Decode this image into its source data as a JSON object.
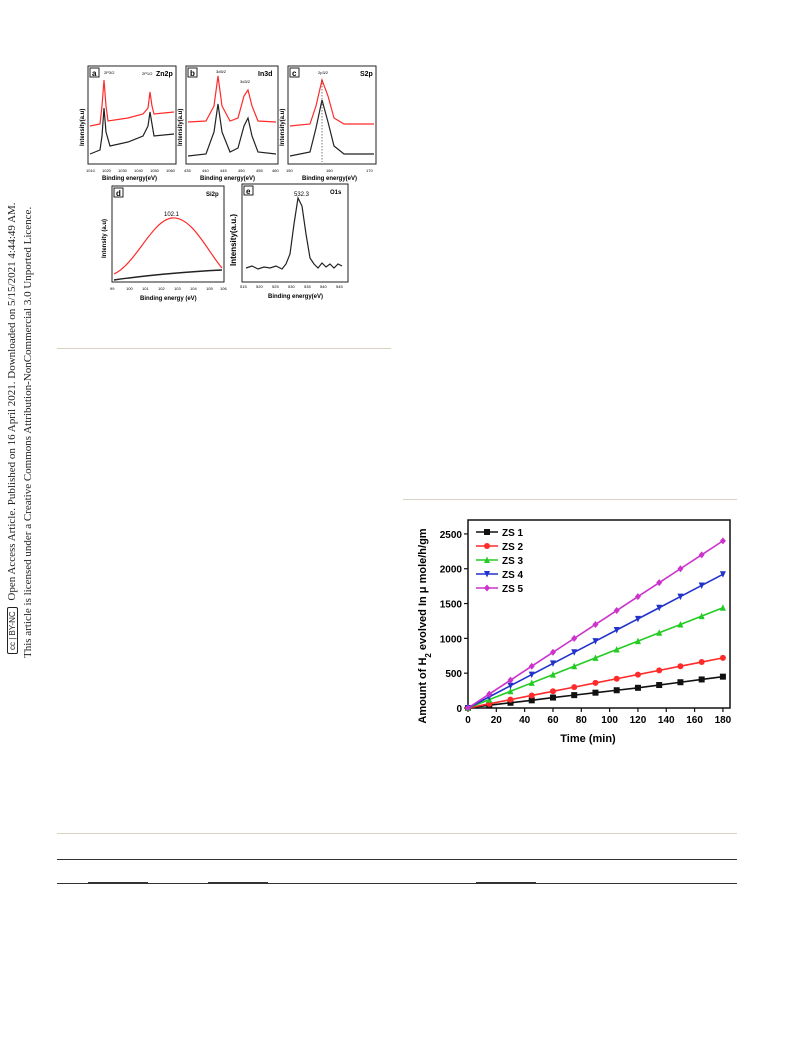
{
  "sidebar": {
    "line1": "Open Access Article. Published on 16 April 2021. Downloaded on 5/15/2021 4:44:49 AM.",
    "line2": "This article is licensed under a Creative Commons Attribution-NonCommercial 3.0 Unported Licence.",
    "badge_cc": "cc",
    "badge_text": "BY-NC"
  },
  "xps_figure": {
    "panels": [
      {
        "letter": "a",
        "element": "Zn2p",
        "peak_labels": [
          "2P3/2",
          "2P1/2"
        ],
        "xlabel": "Binding energy(eV)",
        "ylabel": "Intensity(a.u)",
        "xticks": [
          "1010",
          "1020",
          "1030",
          "1040",
          "1050",
          "1060"
        ]
      },
      {
        "letter": "b",
        "element": "In3d",
        "peak_labels": [
          "3d5/2",
          "3d3/2"
        ],
        "xlabel": "Binding energy(eV)",
        "ylabel": "Intensity(a.u)",
        "xticks": [
          "435",
          "440",
          "445",
          "450",
          "455",
          "460"
        ]
      },
      {
        "letter": "c",
        "element": "S2p",
        "peak_labels": [
          "2p3/2"
        ],
        "xlabel": "Binding energy(eV)",
        "ylabel": "Intensity(a.u)",
        "xticks": [
          "150",
          "160",
          "170"
        ]
      },
      {
        "letter": "d",
        "element": "Si2p",
        "peak_labels": [
          "102.1"
        ],
        "xlabel": "Binding energy (eV)",
        "ylabel": "Intensity (a.u)",
        "xticks": [
          "99",
          "100",
          "101",
          "102",
          "103",
          "104",
          "105",
          "106"
        ]
      },
      {
        "letter": "e",
        "element": "O1s",
        "peak_labels": [
          "532.3"
        ],
        "xlabel": "Binding energy(eV)",
        "ylabel": "Intensity(a.u.)",
        "xticks": [
          "515",
          "520",
          "525",
          "530",
          "535",
          "540",
          "545"
        ]
      }
    ],
    "colors": {
      "red": "#ff2a2a",
      "black": "#222222"
    }
  },
  "chart_data": {
    "type": "line",
    "title": "",
    "xlabel": "Time (min)",
    "ylabel": "Amount of H2 evolved In μ mole/h/gm",
    "xlim": [
      0,
      185
    ],
    "ylim": [
      0,
      2700
    ],
    "x": [
      0,
      15,
      30,
      45,
      60,
      75,
      90,
      105,
      120,
      135,
      150,
      165,
      180
    ],
    "xticks": [
      "0",
      "20",
      "40",
      "60",
      "80",
      "100",
      "120",
      "140",
      "160",
      "180"
    ],
    "yticks": [
      "0",
      "500",
      "1000",
      "1500",
      "2000",
      "2500"
    ],
    "legend_position": "top-left",
    "series": [
      {
        "name": "ZS 1",
        "color": "#111111",
        "marker": "square",
        "values": [
          0,
          40,
          75,
          110,
          150,
          185,
          220,
          255,
          290,
          330,
          370,
          410,
          450
        ]
      },
      {
        "name": "ZS 2",
        "color": "#ff2a2a",
        "marker": "circle",
        "values": [
          0,
          60,
          120,
          180,
          240,
          300,
          360,
          420,
          480,
          540,
          600,
          660,
          720
        ]
      },
      {
        "name": "ZS 3",
        "color": "#22cc22",
        "marker": "triangle-up",
        "values": [
          0,
          120,
          240,
          360,
          480,
          600,
          720,
          840,
          960,
          1080,
          1200,
          1320,
          1440
        ]
      },
      {
        "name": "ZS 4",
        "color": "#2233cc",
        "marker": "triangle-down",
        "values": [
          0,
          160,
          320,
          480,
          640,
          800,
          960,
          1120,
          1280,
          1440,
          1600,
          1760,
          1920
        ]
      },
      {
        "name": "ZS 5",
        "color": "#cc33cc",
        "marker": "diamond",
        "values": [
          0,
          200,
          400,
          600,
          800,
          1000,
          1200,
          1400,
          1600,
          1800,
          2000,
          2200,
          2400
        ]
      }
    ]
  }
}
